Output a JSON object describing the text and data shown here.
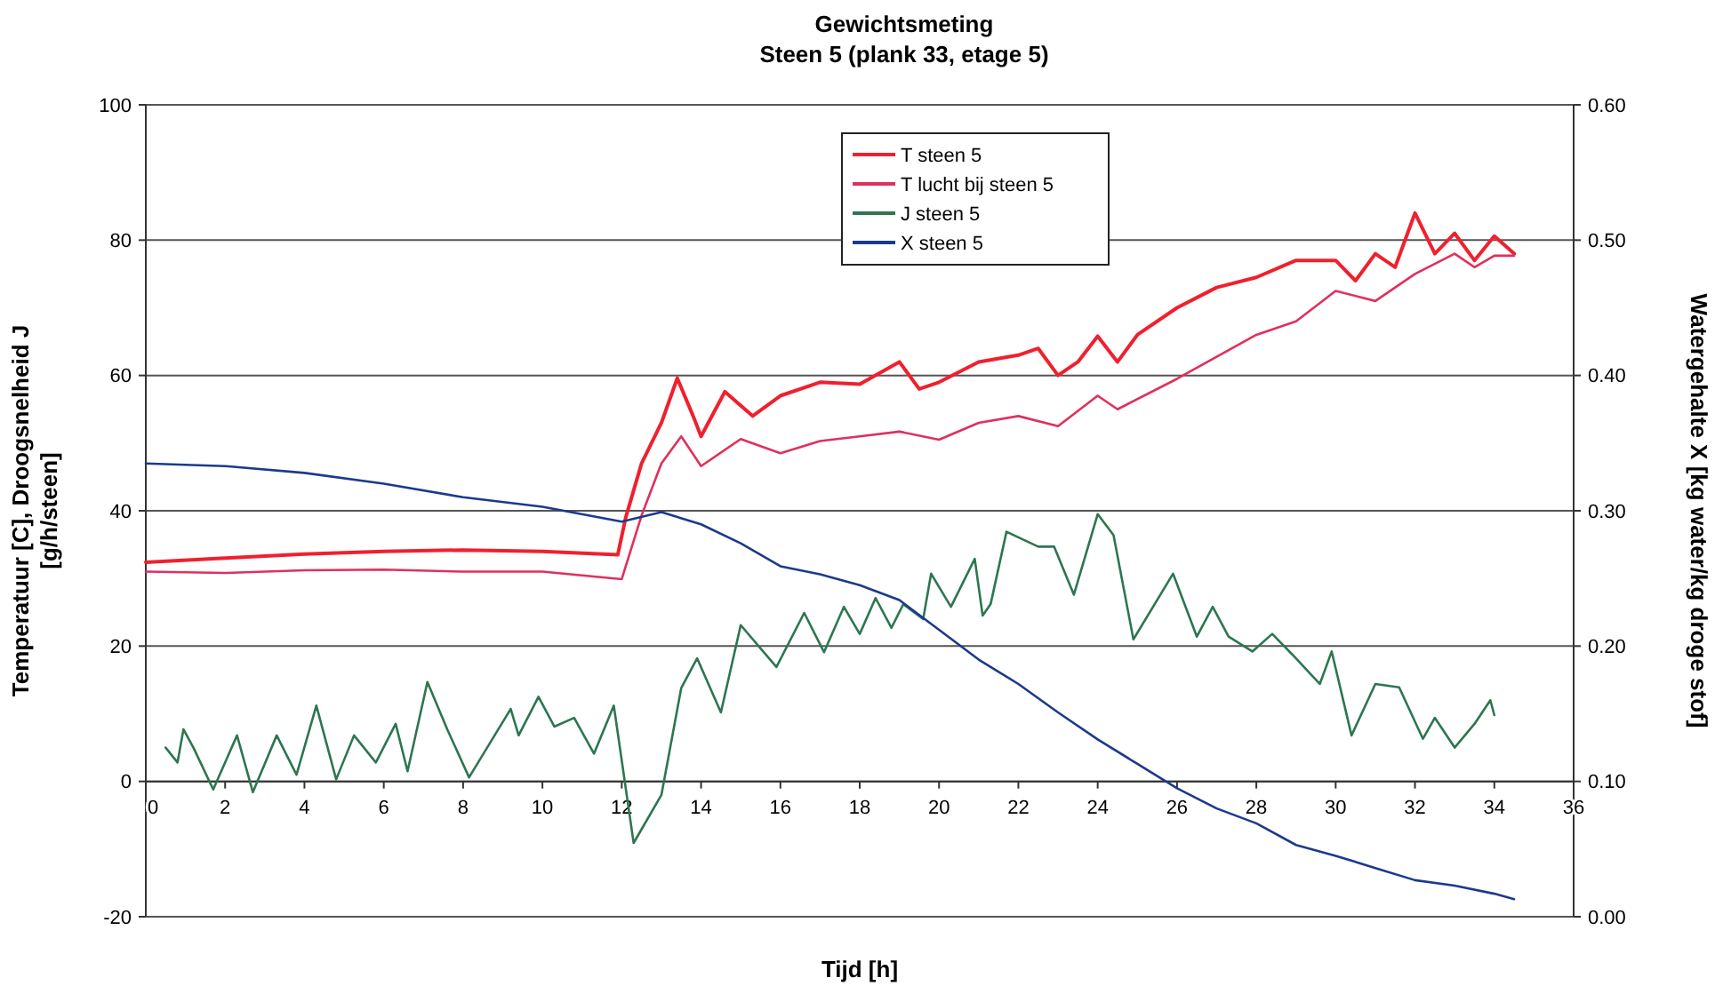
{
  "chart_data": {
    "type": "line",
    "title": "Gewichtsmeting",
    "subtitle": "Steen 5 (plank 33, etage 5)",
    "xlabel": "Tijd [h]",
    "ylabel": "Temperatuur [C], Droogsnelheid J [g/h/steen]",
    "y2label": "Watergehalte X [kg water/kg droge stof]",
    "xlim": [
      0,
      36
    ],
    "xticks": [
      0,
      2,
      4,
      6,
      8,
      10,
      12,
      14,
      16,
      18,
      20,
      22,
      24,
      26,
      28,
      30,
      32,
      34,
      36
    ],
    "ylim": [
      -20,
      100
    ],
    "yticks": [
      -20,
      0,
      20,
      40,
      60,
      80,
      100
    ],
    "y2lim": [
      0,
      0.6
    ],
    "y2ticks": [
      {
        "value": 0,
        "label": "0.00"
      },
      {
        "value": 0.1,
        "label": "0.10"
      },
      {
        "value": 0.2,
        "label": "0.20"
      },
      {
        "value": 0.3,
        "label": "0.30"
      },
      {
        "value": 0.4,
        "label": "0.40"
      },
      {
        "value": 0.5,
        "label": "0.50"
      },
      {
        "value": 0.6,
        "label": "0.60"
      }
    ],
    "grid": "y",
    "legend": "top",
    "marker": "none",
    "line_style": "solid",
    "series": [
      {
        "name": "T steen 5",
        "color": "#f0202e",
        "x": [
          0,
          2,
          4,
          6,
          8,
          10,
          11.9,
          12.1,
          12.5,
          13,
          13.4,
          13.8,
          14,
          14.6,
          15.3,
          16,
          17,
          18,
          19,
          19.5,
          20,
          21,
          22,
          22.5,
          23,
          23.5,
          24,
          24.5,
          25,
          26,
          27,
          28,
          29,
          30,
          30.5,
          31,
          31.5,
          32,
          32.5,
          33,
          33.5,
          34,
          34.5
        ],
        "values": [
          32.4,
          33,
          33.6,
          34,
          34.2,
          34,
          33.5,
          39,
          47,
          53,
          59.6,
          54,
          51,
          57.6,
          54,
          57,
          59,
          58.7,
          62,
          58,
          59,
          62,
          63,
          64,
          60,
          62,
          65.8,
          62,
          66,
          70,
          73,
          74.5,
          77,
          77,
          74,
          78,
          76,
          84,
          78,
          81,
          77,
          80.6,
          78
        ]
      },
      {
        "name": "T lucht bij steen 5",
        "color": "#e0305c",
        "x": [
          0,
          2,
          4,
          6,
          8,
          10,
          12,
          12.5,
          13,
          13.5,
          14,
          15,
          16,
          17,
          18,
          19,
          20,
          21,
          22,
          23,
          24,
          24.5,
          26,
          28,
          29,
          30,
          31,
          32,
          33,
          33.5,
          34,
          34.5
        ],
        "values": [
          31,
          30.8,
          31.2,
          31.3,
          31,
          31,
          29.9,
          39.3,
          47,
          51,
          46.6,
          50.6,
          48.5,
          50.3,
          51,
          51.7,
          50.5,
          53,
          54,
          52.5,
          57,
          55,
          59.5,
          66,
          68,
          72.5,
          71,
          75,
          78,
          76,
          77.7,
          77.7
        ]
      },
      {
        "name": "J steen 5",
        "color": "#2d7650",
        "x": [
          0.5,
          0.8,
          0.95,
          1.2,
          1.7,
          2.3,
          2.7,
          3.3,
          3.8,
          4.3,
          4.8,
          5.25,
          5.8,
          6.3,
          6.6,
          7.1,
          7.6,
          8.15,
          9.2,
          9.4,
          9.9,
          10.3,
          10.8,
          11.3,
          11.8,
          12.3,
          13,
          13.5,
          13.9,
          14.5,
          15,
          15.9,
          16.6,
          17.1,
          17.6,
          18,
          18.4,
          18.8,
          19.1,
          19.6,
          19.8,
          20.3,
          20.9,
          21.1,
          21.3,
          21.7,
          22.5,
          22.9,
          23.4,
          24,
          24.4,
          24.9,
          25.9,
          26.5,
          26.9,
          27.3,
          27.9,
          28.4,
          28.9,
          29.6,
          29.9,
          30.4,
          31,
          31.6,
          32.2,
          32.5,
          33,
          33.5,
          33.9,
          34
        ],
        "values": [
          5,
          2.8,
          7.7,
          5,
          -1.2,
          6.8,
          -1.6,
          6.8,
          1,
          11.2,
          0.3,
          6.8,
          2.8,
          8.5,
          1.5,
          14.7,
          7.7,
          0.6,
          10.7,
          6.8,
          12.5,
          8.1,
          9.4,
          4.1,
          11.2,
          -9.1,
          -2,
          13.8,
          18.2,
          10.2,
          23.1,
          16.9,
          24.9,
          19.1,
          25.8,
          21.8,
          27.1,
          22.7,
          26.2,
          24,
          30.7,
          25.8,
          32.9,
          24.5,
          26.2,
          36.9,
          34.7,
          34.7,
          27.6,
          39.5,
          36.4,
          21,
          30.7,
          21.4,
          25.8,
          21.4,
          19.2,
          21.8,
          18.8,
          14.4,
          19.2,
          6.8,
          14.4,
          13.9,
          6.3,
          9.4,
          5,
          8.5,
          12,
          9.8
        ]
      },
      {
        "name": "X steen 5",
        "color": "#1c3a8c",
        "axis": "y2",
        "x": [
          0,
          2,
          4,
          6,
          8,
          10,
          12,
          13,
          14,
          15,
          16,
          17,
          18,
          19,
          20,
          21,
          22,
          23,
          24,
          25,
          26,
          27,
          28,
          29,
          30,
          31,
          32,
          33,
          34,
          34.5
        ],
        "values": [
          0.335,
          0.333,
          0.328,
          0.32,
          0.31,
          0.303,
          0.292,
          0.299,
          0.29,
          0.276,
          0.259,
          0.253,
          0.245,
          0.234,
          0.212,
          0.19,
          0.172,
          0.151,
          0.131,
          0.113,
          0.095,
          0.08,
          0.069,
          0.053,
          0.045,
          0.036,
          0.027,
          0.023,
          0.017,
          0.013
        ]
      }
    ]
  }
}
